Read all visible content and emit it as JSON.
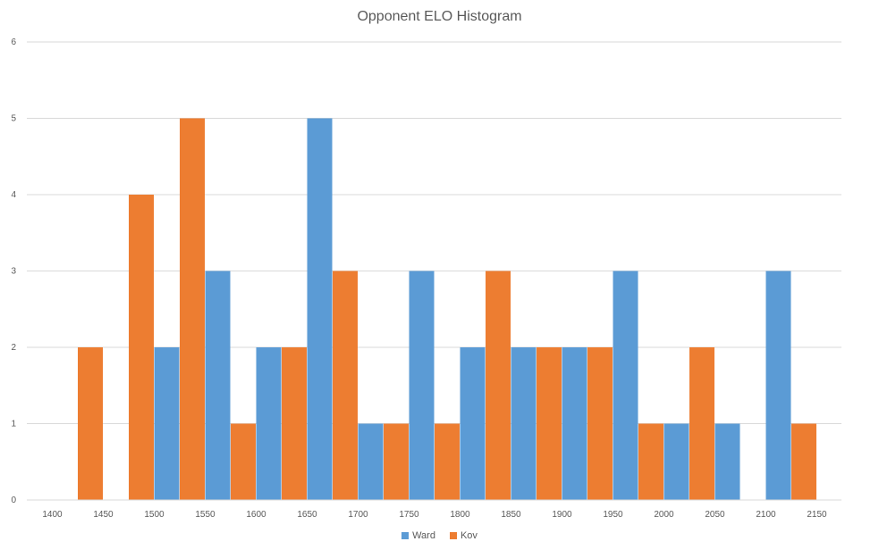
{
  "chart_data": {
    "type": "bar",
    "title": "Opponent ELO Histogram",
    "xlabel": "",
    "ylabel": "",
    "ylim": [
      0,
      6
    ],
    "yticks": [
      "0",
      "1",
      "2",
      "3",
      "4",
      "5",
      "6"
    ],
    "categories": [
      "1400",
      "1450",
      "1500",
      "1550",
      "1600",
      "1650",
      "1700",
      "1750",
      "1800",
      "1850",
      "1900",
      "1950",
      "2000",
      "2050",
      "2100",
      "2150"
    ],
    "series": [
      {
        "name": "Ward",
        "color": "#5B9BD5",
        "values": [
          0,
          0,
          2,
          3,
          2,
          5,
          1,
          3,
          2,
          2,
          2,
          3,
          1,
          1,
          3,
          0
        ]
      },
      {
        "name": "Kov",
        "color": "#ED7D31",
        "values": [
          0,
          2,
          4,
          5,
          1,
          2,
          3,
          1,
          1,
          3,
          2,
          2,
          1,
          2,
          0,
          1
        ]
      }
    ],
    "grid": true,
    "legend_position": "bottom"
  }
}
